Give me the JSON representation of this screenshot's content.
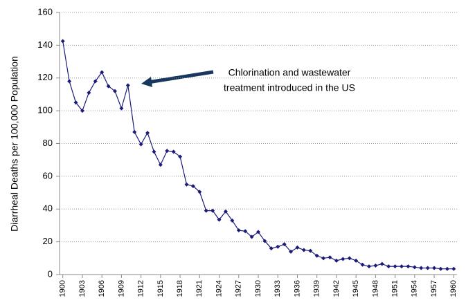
{
  "chart_data": {
    "type": "line",
    "ylabel": "Diarrheal Deaths per 100,000 Population",
    "annotation": [
      "Chlorination and wastewater",
      "treatment introduced in the US"
    ],
    "x": [
      1900,
      1901,
      1902,
      1903,
      1904,
      1905,
      1906,
      1907,
      1908,
      1909,
      1910,
      1911,
      1912,
      1913,
      1914,
      1915,
      1916,
      1917,
      1918,
      1919,
      1920,
      1921,
      1922,
      1923,
      1924,
      1925,
      1926,
      1927,
      1928,
      1929,
      1930,
      1931,
      1932,
      1933,
      1934,
      1935,
      1936,
      1937,
      1938,
      1939,
      1940,
      1941,
      1942,
      1943,
      1944,
      1945,
      1946,
      1947,
      1948,
      1949,
      1950,
      1951,
      1952,
      1953,
      1954,
      1955,
      1956,
      1957,
      1958,
      1959,
      1960
    ],
    "series": [
      {
        "color": "#1a1a7a",
        "values": [
          142.5,
          118,
          105,
          100,
          111,
          118,
          123.5,
          115,
          112,
          101.5,
          115.5,
          87,
          79.5,
          86.5,
          75,
          67,
          75.5,
          75,
          72,
          55,
          54,
          50.5,
          39,
          39,
          33.5,
          38.5,
          33,
          27,
          26.5,
          23,
          26,
          20.5,
          16,
          17,
          18.5,
          14,
          16.5,
          15,
          14.5,
          11.5,
          10,
          10.5,
          8.5,
          9.5,
          10,
          8.5,
          6,
          5,
          5.5,
          6.5,
          5,
          5,
          5,
          5,
          4.5,
          4,
          4,
          4,
          3.5,
          3.5,
          3.5
        ]
      }
    ],
    "xlim": [
      1899.5,
      1960.5
    ],
    "xticks": [
      1900,
      1903,
      1906,
      1909,
      1912,
      1915,
      1918,
      1921,
      1924,
      1927,
      1930,
      1933,
      1936,
      1939,
      1942,
      1945,
      1948,
      1951,
      1954,
      1957,
      1960
    ],
    "ylim": [
      0,
      160
    ],
    "yticks": [
      0,
      20,
      40,
      60,
      80,
      100,
      120,
      140,
      160
    ],
    "grid": true
  }
}
